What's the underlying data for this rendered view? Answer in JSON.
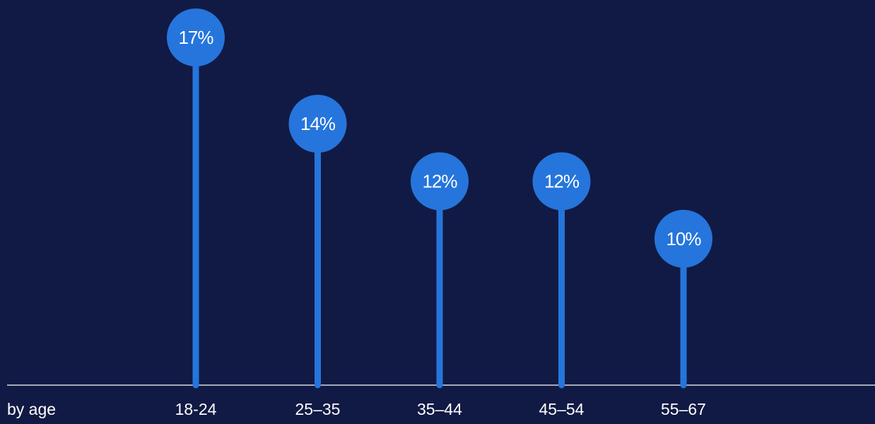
{
  "colors": {
    "background": "#111a44",
    "accent": "#2575dc",
    "axis": "#ffffff",
    "text": "#ffffff"
  },
  "chart_data": {
    "type": "lollipop",
    "category_label": "by age",
    "categories": [
      "18-24",
      "25–35",
      "35–44",
      "45–54",
      "55–67"
    ],
    "values": [
      17,
      14,
      12,
      12,
      10
    ],
    "value_labels": [
      "17%",
      "14%",
      "12%",
      "12%",
      "10%"
    ],
    "unit": "%",
    "ylim": [
      0,
      20
    ],
    "grid": false,
    "legend": "none"
  }
}
